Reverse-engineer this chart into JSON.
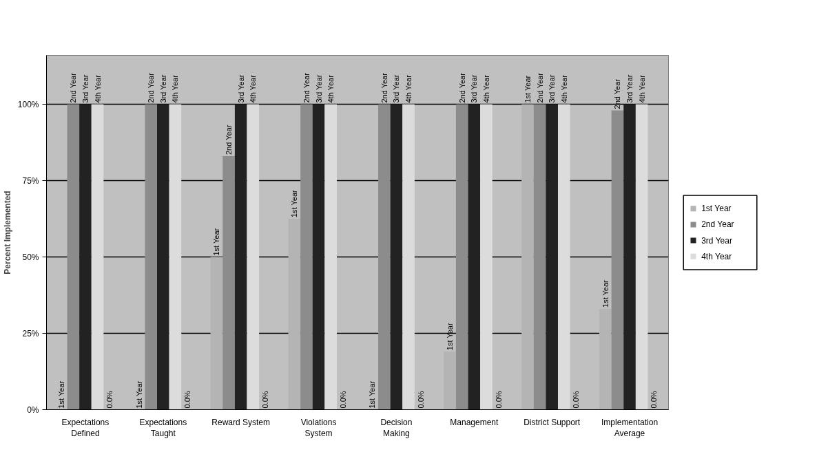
{
  "chart_data": {
    "type": "bar",
    "ylabel": "Percent Implemented",
    "categories": [
      "Expectations\nDefined",
      "Expectations\nTaught",
      "Reward System",
      "Violations\nSystem",
      "Decision\nMaking",
      "Management",
      "District Support",
      "Implementation\nAverage"
    ],
    "series": [
      {
        "name": "1st Year",
        "color": "#b4b4b4",
        "values": [
          0,
          0,
          50,
          62.5,
          0,
          19,
          100,
          33
        ]
      },
      {
        "name": "2nd Year",
        "color": "#8c8c8c",
        "values": [
          100,
          100,
          83,
          100,
          100,
          100,
          100,
          98
        ]
      },
      {
        "name": "3rd Year",
        "color": "#222222",
        "values": [
          100,
          100,
          100,
          100,
          100,
          100,
          100,
          100
        ]
      },
      {
        "name": "4th Year",
        "color": "#dcdcdc",
        "values": [
          100,
          100,
          100,
          100,
          100,
          100,
          100,
          100
        ]
      }
    ],
    "annotations": [
      "1st Year",
      "2nd Year",
      "3rd Year",
      "4th Year",
      "0.0%",
      "1st Year",
      "2nd Year",
      "3rd Year",
      "4th Year",
      "0.0%",
      "1st Year",
      "2nd Year",
      "3rd Year",
      "4th Year",
      "0.0%",
      "1st Year",
      "2nd Year",
      "3rd Year",
      "4th Year",
      "0.0%",
      "1st Year",
      "2nd Year",
      "3rd Year",
      "4th Year",
      "0.0%",
      "1st Year",
      "2nd Year",
      "3rd Year",
      "4th Year",
      "0.0%",
      "1st Year",
      "2nd Year",
      "3rd Year",
      "4th Year",
      "0.0%",
      "1st Year",
      "2nd Year",
      "3rd Year",
      "4th Year",
      "0.0%"
    ],
    "ylim": [
      0,
      116
    ],
    "yticks": [
      {
        "value": 0,
        "label": "0%"
      },
      {
        "value": 25,
        "label": "25%"
      },
      {
        "value": 50,
        "label": "50%"
      },
      {
        "value": 75,
        "label": "75%"
      },
      {
        "value": 100,
        "label": "100%"
      }
    ],
    "grid": "y",
    "legend": "right"
  }
}
